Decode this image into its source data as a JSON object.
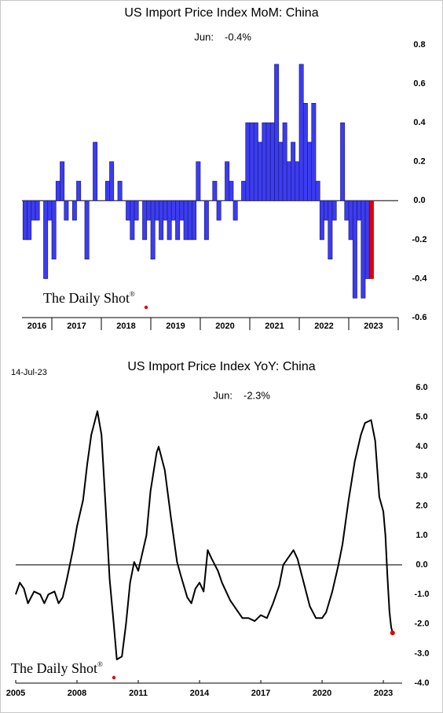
{
  "chart_data": [
    {
      "type": "bar",
      "title": "US Import Price Index MoM: China",
      "last_label": "Jun:",
      "last_value_label": "-0.4%",
      "watermark": "The Daily Shot",
      "watermark_mark": "®",
      "categories": [
        "2016",
        "2017",
        "2018",
        "2019",
        "2020",
        "2021",
        "2022",
        "2023"
      ],
      "values": [
        [
          -0.2,
          -0.2,
          -0.1,
          -0.1,
          0.0,
          -0.4,
          -0.1
        ],
        [
          -0.3,
          0.1,
          0.2,
          -0.1,
          0.0,
          -0.1,
          0.1,
          0.0,
          -0.3,
          0.0,
          0.3,
          0.0
        ],
        [
          0.0,
          0.1,
          0.2,
          0.0,
          0.1,
          0.0,
          -0.1,
          -0.2,
          -0.1,
          0.0,
          -0.2,
          -0.1
        ],
        [
          -0.3,
          -0.1,
          -0.2,
          -0.1,
          -0.2,
          -0.1,
          -0.2,
          -0.1,
          -0.2,
          -0.2,
          -0.2,
          0.2
        ],
        [
          0.0,
          -0.2,
          0.0,
          0.1,
          -0.1,
          0.0,
          0.2,
          0.1,
          -0.1,
          0.0,
          0.1,
          0.4
        ],
        [
          0.4,
          0.4,
          0.3,
          0.4,
          0.4,
          0.4,
          0.7,
          0.3,
          0.4,
          0.2,
          0.3,
          0.2
        ],
        [
          0.7,
          0.5,
          0.3,
          0.5,
          0.1,
          -0.2,
          -0.1,
          -0.3,
          -0.1,
          0.0,
          0.4,
          -0.1
        ],
        [
          -0.2,
          -0.5,
          -0.1,
          -0.5,
          -0.4,
          -0.4
        ]
      ],
      "color": "#3c3cf0",
      "highlight_color": "#e00000",
      "ylim": [
        -0.6,
        0.8
      ],
      "yticks": [
        0.8,
        0.6,
        0.4,
        0.2,
        {
          "value": 0,
          "label": "0.0"
        },
        -0.2,
        -0.4,
        -0.6
      ]
    },
    {
      "type": "line",
      "title": "US Import Price Index YoY: China",
      "date": "14-Jul-23",
      "last_label": "Jun:",
      "last_value_label": "-2.3%",
      "watermark": "The Daily Shot",
      "watermark_mark": "®",
      "x": [
        2005.0,
        2005.2,
        2005.4,
        2005.6,
        2005.9,
        2006.2,
        2006.4,
        2006.6,
        2006.9,
        2007.1,
        2007.3,
        2007.5,
        2007.8,
        2008.0,
        2008.3,
        2008.5,
        2008.7,
        2009.0,
        2009.2,
        2009.4,
        2009.6,
        2009.8,
        2009.95,
        2010.2,
        2010.4,
        2010.6,
        2010.8,
        2011.0,
        2011.2,
        2011.4,
        2011.6,
        2011.9,
        2012.0,
        2012.3,
        2012.6,
        2012.9,
        2013.1,
        2013.4,
        2013.6,
        2013.8,
        2014.0,
        2014.2,
        2014.4,
        2014.6,
        2014.9,
        2015.1,
        2015.5,
        2015.9,
        2016.1,
        2016.4,
        2016.7,
        2017.0,
        2017.3,
        2017.6,
        2017.9,
        2018.1,
        2018.3,
        2018.6,
        2018.8,
        2019.1,
        2019.4,
        2019.7,
        2020.0,
        2020.2,
        2020.5,
        2020.8,
        2021.0,
        2021.3,
        2021.6,
        2021.9,
        2022.1,
        2022.4,
        2022.6,
        2022.8,
        2023.0,
        2023.1,
        2023.2,
        2023.3,
        2023.38,
        2023.45
      ],
      "values": [
        -1.0,
        -0.6,
        -0.8,
        -1.3,
        -0.9,
        -1.0,
        -1.3,
        -1.0,
        -0.9,
        -1.3,
        -1.1,
        -0.5,
        0.5,
        1.3,
        2.2,
        3.4,
        4.4,
        5.2,
        4.4,
        2.0,
        -0.5,
        -2.0,
        -3.2,
        -3.1,
        -2.0,
        -0.6,
        0.1,
        -0.2,
        0.4,
        1.0,
        2.5,
        3.8,
        4.0,
        3.2,
        1.6,
        0.1,
        -0.4,
        -1.1,
        -1.3,
        -0.8,
        -0.6,
        -0.9,
        0.5,
        0.2,
        -0.2,
        -0.6,
        -1.2,
        -1.6,
        -1.8,
        -1.8,
        -1.9,
        -1.7,
        -1.8,
        -1.3,
        -0.7,
        0.0,
        0.2,
        0.5,
        0.2,
        -0.6,
        -1.4,
        -1.8,
        -1.8,
        -1.6,
        -0.9,
        0.0,
        0.7,
        2.2,
        3.5,
        4.4,
        4.8,
        4.9,
        4.2,
        2.3,
        1.8,
        1.0,
        -0.4,
        -1.6,
        -2.1,
        -2.3
      ],
      "color": "#000000",
      "highlight_color": "#e00000",
      "xlim": [
        2005,
        2023.92
      ],
      "xticks": [
        2005,
        2008,
        2011,
        2014,
        2017,
        2020,
        2023
      ],
      "ylim": [
        -4,
        6
      ],
      "yticks": [
        {
          "value": 6,
          "label": "6.0"
        },
        {
          "value": 5,
          "label": "5.0"
        },
        {
          "value": 4,
          "label": "4.0"
        },
        {
          "value": 3,
          "label": "3.0"
        },
        {
          "value": 2,
          "label": "2.0"
        },
        {
          "value": 1,
          "label": "1.0"
        },
        {
          "value": 0,
          "label": "0.0"
        },
        {
          "value": -1,
          "label": "-1.0"
        },
        {
          "value": -2,
          "label": "-2.0"
        },
        {
          "value": -3,
          "label": "-3.0"
        },
        {
          "value": -4,
          "label": "-4.0"
        }
      ]
    }
  ]
}
